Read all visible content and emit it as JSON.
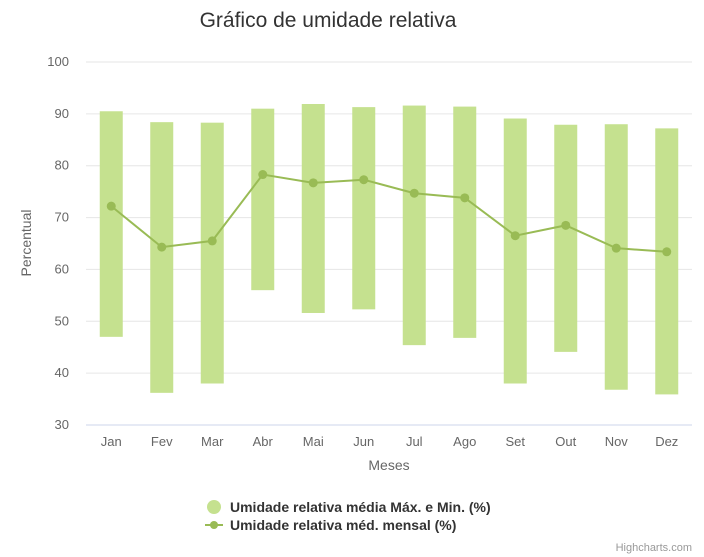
{
  "chart_data": {
    "type": "columnrange+line",
    "title": "Gráfico de umidade relativa",
    "xlabel": "Meses",
    "ylabel": "Percentual",
    "ylim": [
      30,
      100
    ],
    "yticks": [
      30,
      40,
      50,
      60,
      70,
      80,
      90,
      100
    ],
    "categories": [
      "Jan",
      "Fev",
      "Mar",
      "Abr",
      "Mai",
      "Jun",
      "Jul",
      "Ago",
      "Set",
      "Out",
      "Nov",
      "Dez"
    ],
    "series": [
      {
        "name": "Umidade relativa média Máx. e Min. (%)",
        "type": "columnrange",
        "color": "#c5e18f",
        "low": [
          47,
          36.2,
          38,
          56,
          51.6,
          52.3,
          45.4,
          46.8,
          38,
          44.1,
          36.8,
          35.9
        ],
        "high": [
          90.5,
          88.4,
          88.3,
          91,
          91.9,
          91.3,
          91.6,
          91.4,
          89.1,
          87.9,
          88,
          87.2
        ]
      },
      {
        "name": "Umidade relativa méd. mensal (%)",
        "type": "line",
        "color": "#99bb55",
        "values": [
          72.2,
          64.3,
          65.5,
          78.3,
          76.7,
          77.3,
          74.7,
          73.8,
          66.5,
          68.5,
          64.1,
          63.4
        ]
      }
    ],
    "legend_position": "bottom-center",
    "credits": "Highcharts.com"
  }
}
